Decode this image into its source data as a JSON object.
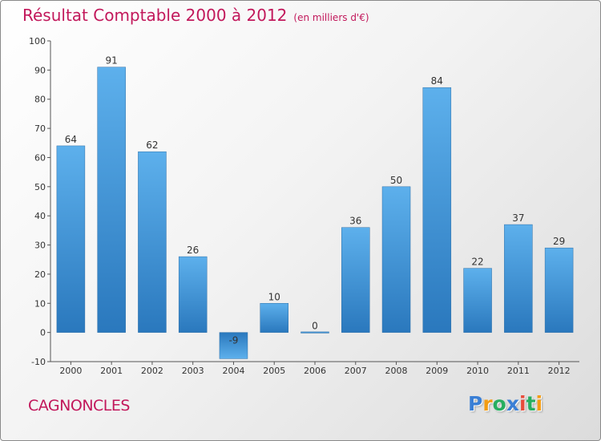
{
  "header": {
    "title": "Résultat Comptable 2000 à 2012",
    "subtitle": "(en milliers d'€)"
  },
  "footer": {
    "commune": "CAGNONCLES",
    "logo_letters": [
      "P",
      "r",
      "o",
      "x",
      "i",
      "t",
      "i"
    ]
  },
  "colors": {
    "title": "#c2185b",
    "bar_top": "#5db0ec",
    "bar_bottom": "#2a78bd",
    "logo": [
      "#3a7fd5",
      "#f39c12",
      "#27ae60",
      "#3a7fd5",
      "#e74c3c",
      "#27ae60",
      "#f39c12"
    ]
  },
  "chart_data": {
    "type": "bar",
    "title": "Résultat Comptable 2000 à 2012",
    "subtitle": "(en milliers d'€)",
    "categories": [
      "2000",
      "2001",
      "2002",
      "2003",
      "2004",
      "2005",
      "2006",
      "2007",
      "2008",
      "2009",
      "2010",
      "2011",
      "2012"
    ],
    "values": [
      64,
      91,
      62,
      26,
      -9,
      10,
      0,
      36,
      50,
      84,
      22,
      37,
      29
    ],
    "ylim": [
      -10,
      100
    ],
    "yticks": [
      -10,
      0,
      10,
      20,
      30,
      40,
      50,
      60,
      70,
      80,
      90,
      100
    ],
    "xlabel": "",
    "ylabel": "",
    "grid": false
  }
}
